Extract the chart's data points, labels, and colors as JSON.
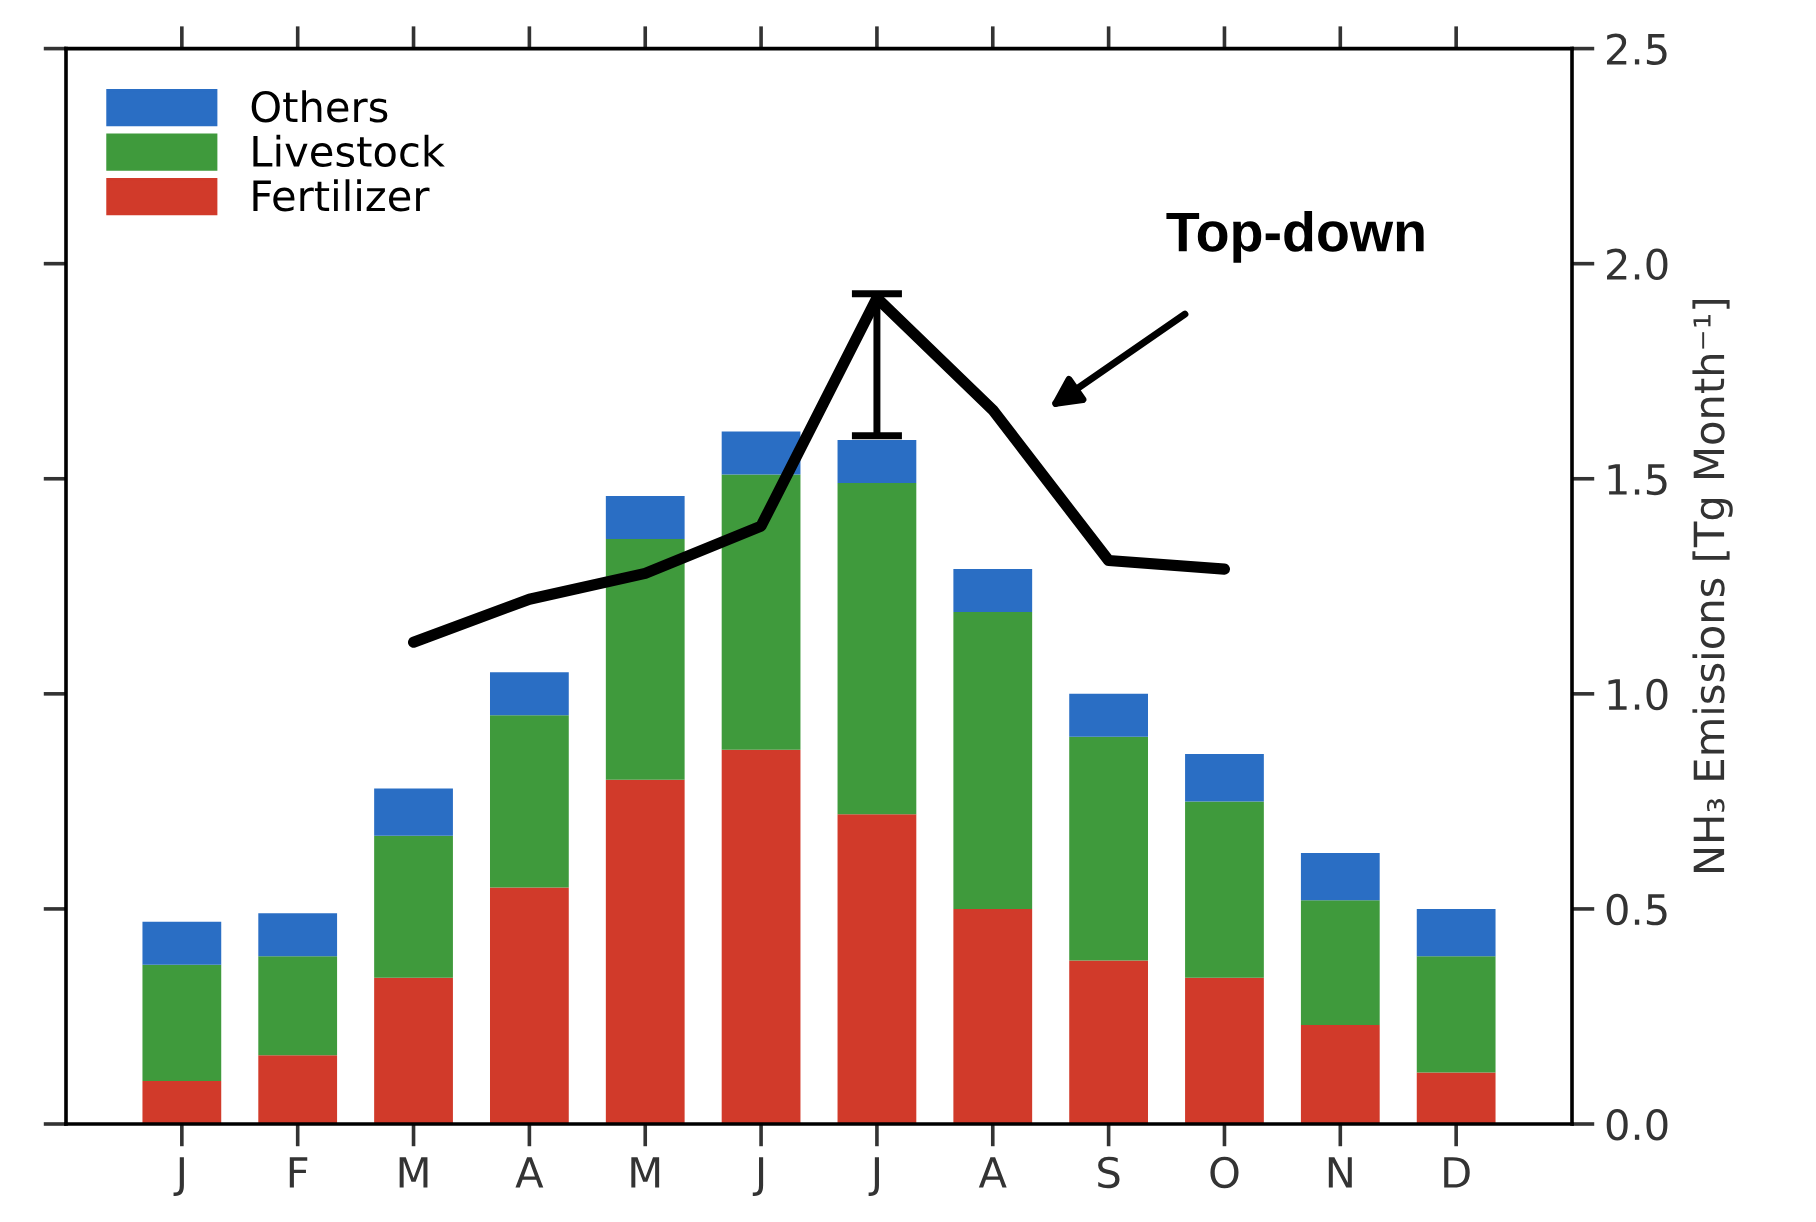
{
  "chart_data": {
    "type": "bar",
    "stacked": true,
    "categories": [
      "J",
      "F",
      "M",
      "A",
      "M",
      "J",
      "J",
      "A",
      "S",
      "O",
      "N",
      "D"
    ],
    "series": [
      {
        "name": "Fertilizer",
        "color": "#d13a2a",
        "values": [
          0.1,
          0.16,
          0.34,
          0.55,
          0.8,
          0.87,
          0.72,
          0.5,
          0.38,
          0.34,
          0.23,
          0.12
        ]
      },
      {
        "name": "Livestock",
        "color": "#3f9a3c",
        "values": [
          0.27,
          0.23,
          0.33,
          0.4,
          0.56,
          0.64,
          0.77,
          0.69,
          0.52,
          0.41,
          0.29,
          0.27
        ]
      },
      {
        "name": "Others",
        "color": "#2a6ec4",
        "values": [
          0.1,
          0.1,
          0.11,
          0.1,
          0.1,
          0.1,
          0.1,
          0.1,
          0.1,
          0.11,
          0.11,
          0.11
        ]
      },
      {
        "type": "line",
        "color": "#000000",
        "values": [
          null,
          null,
          1.12,
          1.22,
          1.28,
          1.39,
          1.92,
          1.66,
          1.31,
          1.29,
          null,
          null
        ],
        "errors": [
          null,
          null,
          null,
          null,
          null,
          null,
          [
            1.6,
            1.93
          ],
          null,
          null,
          null,
          null,
          null
        ]
      }
    ],
    "ylabel": "NH₃ Emissions [Tg Month⁻¹]",
    "ylim": [
      0,
      2.5
    ],
    "yticks": [
      {
        "value": 0,
        "label": "0.0"
      },
      0.5,
      {
        "value": 1,
        "label": "1.0"
      },
      1.5,
      {
        "value": 2,
        "label": "2.0"
      },
      2.5
    ],
    "annotations": [
      "Top-down"
    ],
    "legend": "top left",
    "grid": false
  }
}
